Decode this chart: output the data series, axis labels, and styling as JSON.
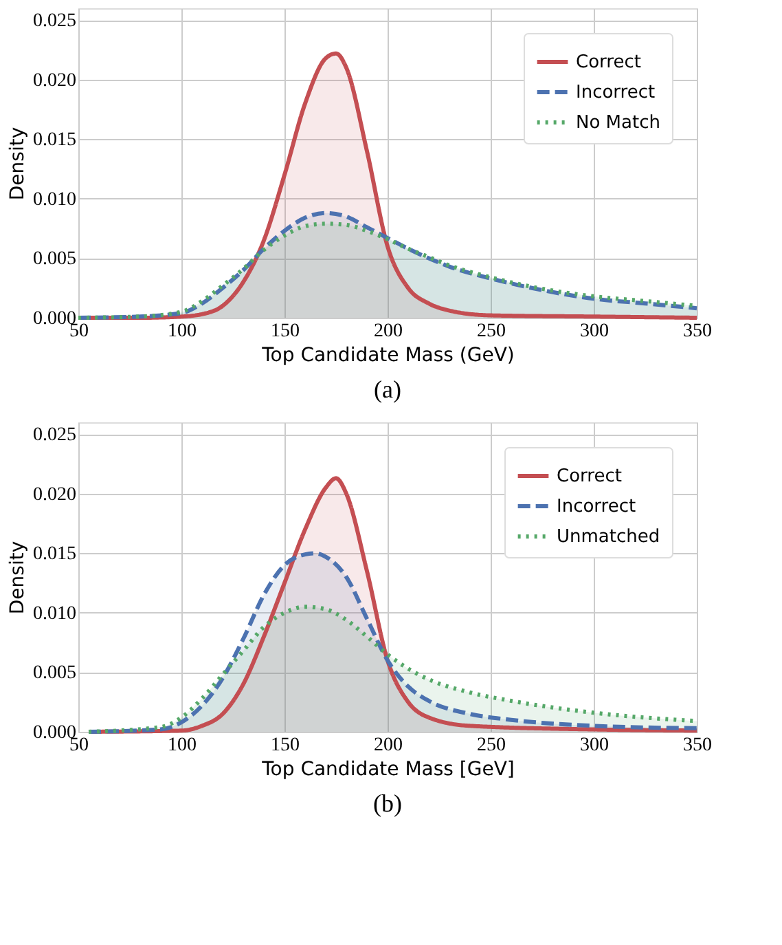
{
  "chart_data": [
    {
      "type": "area",
      "xlabel": "Top Candidate Mass (GeV)",
      "ylabel": "Density",
      "annotations": [
        "(a)"
      ],
      "xlim": [
        50,
        350
      ],
      "ylim": [
        0,
        0.026
      ],
      "xticks": [
        50,
        100,
        150,
        200,
        250,
        300,
        350
      ],
      "yticks": [
        {
          "value": 0,
          "label": "0.000"
        },
        {
          "value": 0.005,
          "label": "0.005"
        },
        {
          "value": 0.01,
          "label": "0.010"
        },
        {
          "value": 0.015,
          "label": "0.015"
        },
        {
          "value": 0.02,
          "label": "0.020"
        },
        {
          "value": 0.025,
          "label": "0.025"
        }
      ],
      "grid": true,
      "legend": "top right",
      "series": [
        {
          "name": "Correct",
          "color": "#c44e52",
          "line_style": "solid",
          "x": [
            50,
            80,
            100,
            110,
            120,
            130,
            140,
            150,
            160,
            170,
            175,
            180,
            190,
            200,
            210,
            220,
            230,
            250,
            300,
            350
          ],
          "values": [
            0,
            0,
            0.0001,
            0.0003,
            0.001,
            0.003,
            0.0065,
            0.012,
            0.018,
            0.0218,
            0.0222,
            0.021,
            0.014,
            0.006,
            0.0025,
            0.0012,
            0.0006,
            0.0002,
            0.0001,
            0
          ]
        },
        {
          "name": "Incorrect",
          "color": "#4c72b0",
          "line_style": "dashed",
          "x": [
            50,
            80,
            100,
            110,
            120,
            130,
            140,
            150,
            160,
            170,
            180,
            190,
            200,
            210,
            220,
            230,
            250,
            270,
            300,
            325,
            350
          ],
          "values": [
            0,
            0.0001,
            0.0004,
            0.0012,
            0.0025,
            0.004,
            0.0058,
            0.0073,
            0.0084,
            0.0088,
            0.0085,
            0.0076,
            0.0067,
            0.0058,
            0.005,
            0.0043,
            0.0033,
            0.0025,
            0.0016,
            0.0012,
            0.0008
          ]
        },
        {
          "name": "No Match",
          "color": "#55a868",
          "line_style": "dotted",
          "x": [
            50,
            80,
            100,
            110,
            120,
            130,
            140,
            150,
            160,
            170,
            180,
            190,
            200,
            210,
            220,
            230,
            250,
            270,
            300,
            325,
            350
          ],
          "values": [
            0,
            0.0001,
            0.0005,
            0.0014,
            0.0027,
            0.0041,
            0.0057,
            0.0069,
            0.0077,
            0.0079,
            0.0078,
            0.0073,
            0.0066,
            0.0058,
            0.0051,
            0.0044,
            0.0034,
            0.0026,
            0.0018,
            0.0014,
            0.001
          ]
        }
      ]
    },
    {
      "type": "area",
      "xlabel": "Top Candidate Mass [GeV]",
      "ylabel": "Density",
      "annotations": [
        "(b)"
      ],
      "xlim": [
        50,
        350
      ],
      "ylim": [
        0,
        0.026
      ],
      "xticks": [
        50,
        100,
        150,
        200,
        250,
        300,
        350
      ],
      "yticks": [
        {
          "value": 0,
          "label": "0.000"
        },
        {
          "value": 0.005,
          "label": "0.005"
        },
        {
          "value": 0.01,
          "label": "0.010"
        },
        {
          "value": 0.015,
          "label": "0.015"
        },
        {
          "value": 0.02,
          "label": "0.020"
        },
        {
          "value": 0.025,
          "label": "0.025"
        }
      ],
      "grid": true,
      "legend": "top right",
      "series": [
        {
          "name": "Correct",
          "color": "#c44e52",
          "line_style": "solid",
          "x": [
            55,
            100,
            110,
            120,
            130,
            140,
            150,
            160,
            170,
            175,
            180,
            190,
            200,
            210,
            220,
            240,
            300,
            350
          ],
          "values": [
            0,
            0.0001,
            0.0005,
            0.0015,
            0.004,
            0.008,
            0.0125,
            0.017,
            0.0205,
            0.0213,
            0.02,
            0.0135,
            0.006,
            0.0025,
            0.0012,
            0.0005,
            0.0002,
            0.0001
          ]
        },
        {
          "name": "Incorrect",
          "color": "#4c72b0",
          "line_style": "dashed",
          "x": [
            55,
            90,
            100,
            110,
            120,
            130,
            140,
            150,
            160,
            165,
            170,
            180,
            190,
            200,
            210,
            220,
            240,
            260,
            300,
            350
          ],
          "values": [
            0,
            0.0002,
            0.0008,
            0.0022,
            0.0045,
            0.0078,
            0.0115,
            0.014,
            0.0149,
            0.015,
            0.0147,
            0.013,
            0.0095,
            0.006,
            0.0038,
            0.0026,
            0.0015,
            0.001,
            0.0005,
            0.0003
          ]
        },
        {
          "name": "Unmatched",
          "color": "#55a868",
          "line_style": "dotted",
          "x": [
            55,
            90,
            100,
            110,
            120,
            130,
            140,
            150,
            160,
            170,
            180,
            190,
            200,
            210,
            220,
            240,
            260,
            300,
            350
          ],
          "values": [
            0,
            0.0004,
            0.0012,
            0.0028,
            0.0048,
            0.0068,
            0.0088,
            0.01,
            0.0105,
            0.0103,
            0.0094,
            0.008,
            0.0065,
            0.0053,
            0.0044,
            0.0033,
            0.0026,
            0.0016,
            0.0009
          ]
        }
      ]
    }
  ]
}
